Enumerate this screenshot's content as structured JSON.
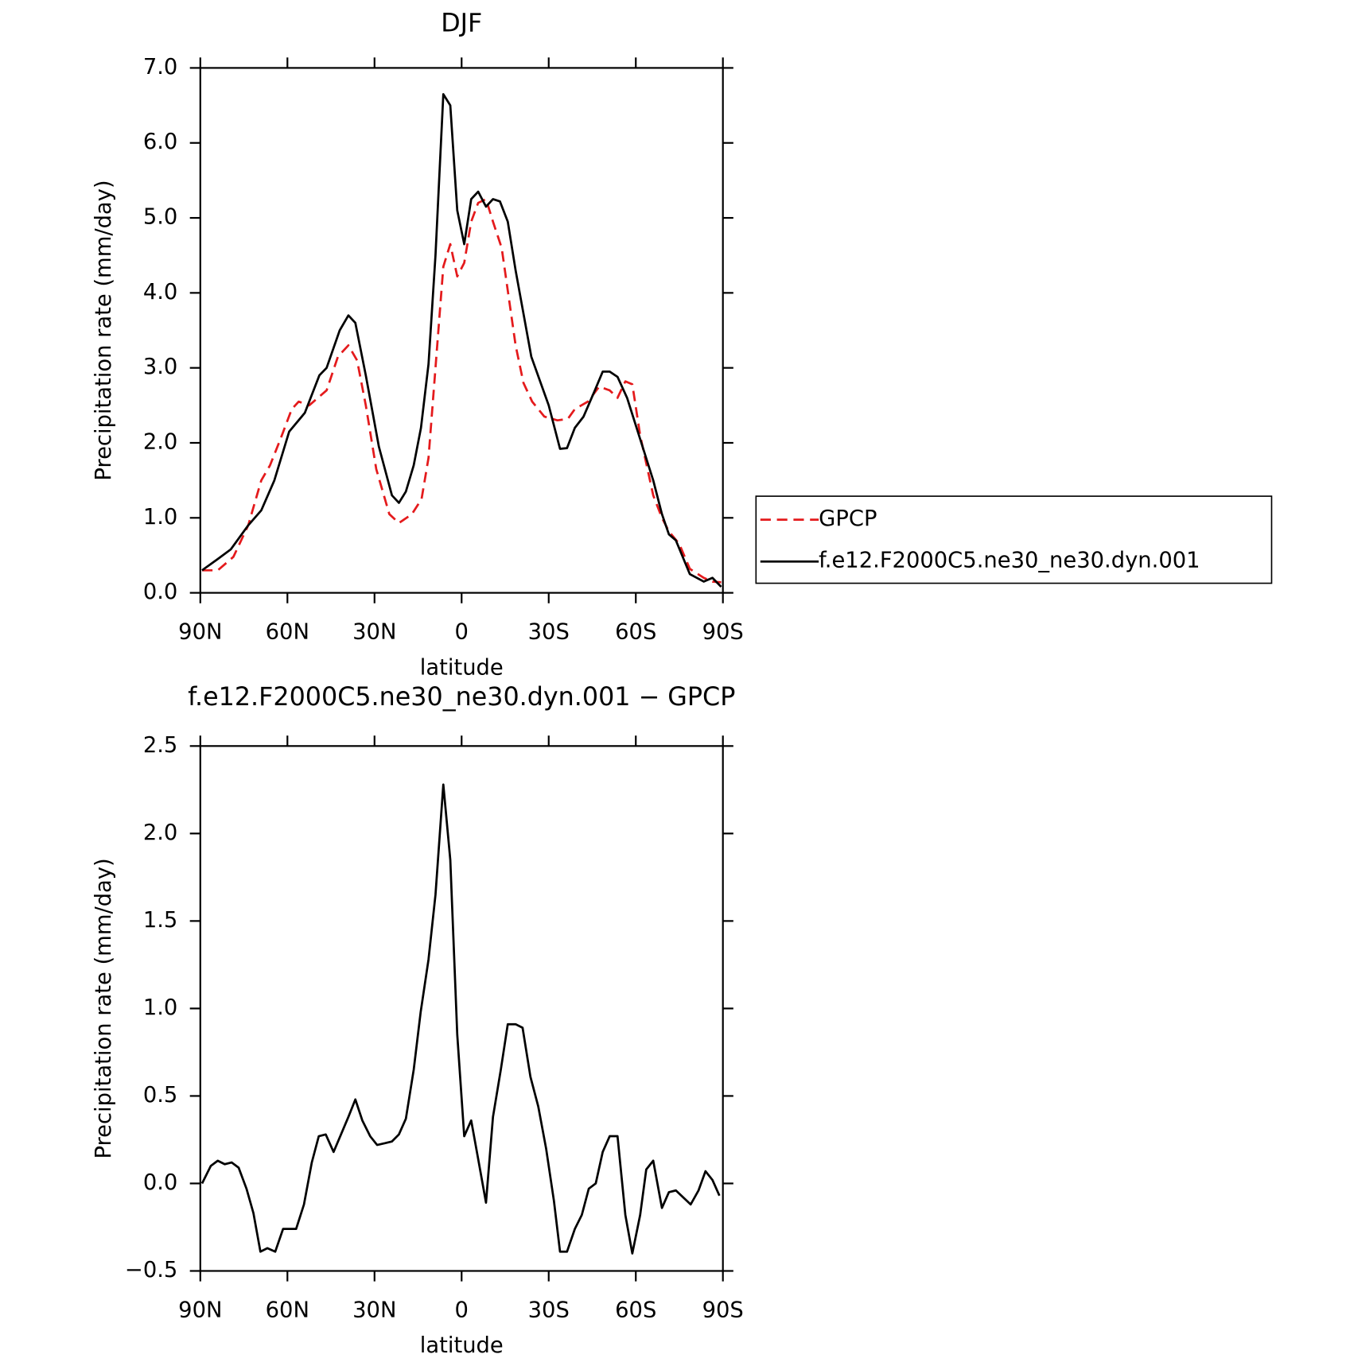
{
  "chart_data": [
    {
      "type": "line",
      "title": "DJF",
      "xlabel": "latitude",
      "ylabel": "Precipitation rate (mm/day)",
      "xlim": [
        90,
        -90
      ],
      "xticks": [
        {
          "value": 90,
          "label": "90N"
        },
        {
          "value": 60,
          "label": "60N"
        },
        {
          "value": 30,
          "label": "30N"
        },
        0,
        {
          "value": -30,
          "label": "30S"
        },
        {
          "value": -60,
          "label": "60S"
        },
        {
          "value": -90,
          "label": "90S"
        }
      ],
      "ylim": [
        0,
        7
      ],
      "yticks": [
        {
          "value": 0,
          "label": "0.0"
        },
        {
          "value": 1,
          "label": "1.0"
        },
        {
          "value": 2,
          "label": "2.0"
        },
        {
          "value": 3,
          "label": "3.0"
        },
        {
          "value": 4,
          "label": "4.0"
        },
        {
          "value": 5,
          "label": "5.0"
        },
        {
          "value": 6,
          "label": "6.0"
        },
        {
          "value": 7,
          "label": "7.0"
        }
      ],
      "legend": "right",
      "series": [
        {
          "name": "GPCP",
          "color": "#e41a1c",
          "dashed": true,
          "x": [
            89.4,
            84,
            78.6,
            73.5,
            69,
            66,
            62.4,
            58.5,
            56.1,
            52.5,
            46.5,
            42.6,
            39,
            36,
            33,
            29.4,
            24.9,
            21.6,
            17.1,
            13.8,
            11.4,
            9,
            6.3,
            3.9,
            1.5,
            -0.9,
            -3.3,
            -5.7,
            -8.4,
            -10.8,
            -13.8,
            -18.6,
            -21.3,
            -24.3,
            -28.5,
            -33,
            -36.6,
            -39,
            -43.5,
            -47.4,
            -51,
            -53.7,
            -56.4,
            -58.8,
            -61.5,
            -66,
            -69,
            -71.4,
            -75,
            -78.6,
            -83.4,
            -86.4,
            -89.4
          ],
          "values": [
            0.3,
            0.3,
            0.48,
            0.9,
            1.5,
            1.7,
            2.05,
            2.45,
            2.55,
            2.5,
            2.7,
            3.15,
            3.3,
            3.1,
            2.5,
            1.65,
            1.05,
            0.93,
            1.05,
            1.25,
            1.8,
            3.0,
            4.35,
            4.65,
            4.22,
            4.4,
            4.95,
            5.2,
            5.25,
            4.95,
            4.6,
            3.3,
            2.8,
            2.55,
            2.35,
            2.3,
            2.32,
            2.45,
            2.55,
            2.75,
            2.7,
            2.6,
            2.82,
            2.78,
            2.1,
            1.3,
            1.0,
            0.82,
            0.65,
            0.32,
            0.2,
            0.15,
            0.14
          ]
        },
        {
          "name": "f.e12.F2000C5.ne30_ne30.dyn.001",
          "color": "#000000",
          "dashed": false,
          "x": [
            89.4,
            84,
            79.5,
            73.5,
            69,
            64.5,
            59.4,
            54,
            49,
            46.5,
            42,
            39,
            36.6,
            33,
            28.5,
            24,
            21.6,
            19.2,
            16.5,
            14,
            11.4,
            9,
            6.3,
            3.9,
            1.5,
            -0.9,
            -3.3,
            -5.7,
            -8.4,
            -10.8,
            -13.2,
            -15.9,
            -18.6,
            -24,
            -30,
            -33.9,
            -36.3,
            -39,
            -42,
            -45.9,
            -48.6,
            -51,
            -53.7,
            -57,
            -61.5,
            -66,
            -69,
            -71.4,
            -73.8,
            -78.6,
            -83.4,
            -86.4,
            -89.4
          ],
          "values": [
            0.3,
            0.45,
            0.58,
            0.9,
            1.1,
            1.5,
            2.15,
            2.4,
            2.9,
            3.0,
            3.5,
            3.7,
            3.6,
            2.9,
            1.95,
            1.3,
            1.2,
            1.35,
            1.7,
            2.2,
            3.05,
            4.5,
            6.65,
            6.5,
            5.1,
            4.65,
            5.25,
            5.35,
            5.15,
            5.25,
            5.22,
            4.95,
            4.3,
            3.15,
            2.5,
            1.92,
            1.93,
            2.2,
            2.35,
            2.7,
            2.95,
            2.95,
            2.88,
            2.6,
            2.05,
            1.5,
            1.05,
            0.78,
            0.7,
            0.25,
            0.15,
            0.2,
            0.08
          ]
        }
      ]
    },
    {
      "type": "line",
      "title": "f.e12.F2000C5.ne30_ne30.dyn.001 − GPCP",
      "xlabel": "latitude",
      "ylabel": "Precipitation rate (mm/day)",
      "xlim": [
        90,
        -90
      ],
      "xticks": [
        {
          "value": 90,
          "label": "90N"
        },
        {
          "value": 60,
          "label": "60N"
        },
        {
          "value": 30,
          "label": "30N"
        },
        0,
        {
          "value": -30,
          "label": "30S"
        },
        {
          "value": -60,
          "label": "60S"
        },
        {
          "value": -90,
          "label": "90S"
        }
      ],
      "ylim": [
        -0.5,
        2.5
      ],
      "yticks": [
        {
          "value": -0.5,
          "label": "−0.5"
        },
        {
          "value": 0,
          "label": "0.0"
        },
        0.5,
        {
          "value": 1,
          "label": "1.0"
        },
        1.5,
        {
          "value": 2,
          "label": "2.0"
        },
        2.5
      ],
      "color": "#000000",
      "x": [
        89.4,
        86.4,
        84,
        81.6,
        79.2,
        76.8,
        74.1,
        71.7,
        69.3,
        66.9,
        64.2,
        61.5,
        57,
        54.3,
        51.6,
        49.2,
        46.8,
        44.1,
        39,
        36.6,
        34.2,
        31.5,
        29.1,
        26.4,
        24,
        21.6,
        19.2,
        16.5,
        14.1,
        11.4,
        9,
        6.3,
        3.9,
        1.5,
        -0.9,
        -3.3,
        -5.7,
        -8.4,
        -10.8,
        -13.5,
        -15.9,
        -18.6,
        -21,
        -23.7,
        -26.4,
        -29.1,
        -31.8,
        -33.9,
        -36.3,
        -39,
        -41.4,
        -43.8,
        -46.2,
        -48.6,
        -51,
        -53.7,
        -56.4,
        -58.8,
        -61.5,
        -63.6,
        -66,
        -69,
        -71.4,
        -73.8,
        -78.9,
        -81.6,
        -84,
        -86.4,
        -88.8
      ],
      "values": [
        0.0,
        0.1,
        0.13,
        0.11,
        0.12,
        0.09,
        -0.03,
        -0.17,
        -0.39,
        -0.37,
        -0.39,
        -0.26,
        -0.26,
        -0.12,
        0.12,
        0.27,
        0.28,
        0.18,
        0.38,
        0.48,
        0.36,
        0.27,
        0.22,
        0.23,
        0.24,
        0.28,
        0.37,
        0.65,
        0.98,
        1.28,
        1.65,
        2.28,
        1.85,
        0.85,
        0.27,
        0.36,
        0.14,
        -0.11,
        0.38,
        0.65,
        0.91,
        0.91,
        0.89,
        0.61,
        0.44,
        0.2,
        -0.1,
        -0.39,
        -0.39,
        -0.26,
        -0.18,
        -0.03,
        0.0,
        0.18,
        0.27,
        0.27,
        -0.18,
        -0.4,
        -0.18,
        0.08,
        0.13,
        -0.14,
        -0.05,
        -0.04,
        -0.12,
        -0.04,
        0.07,
        0.02,
        -0.07
      ]
    }
  ]
}
